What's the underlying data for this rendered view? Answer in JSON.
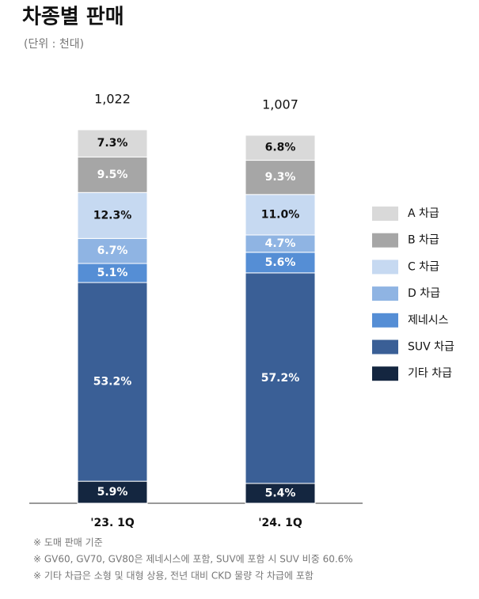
{
  "chart_data": {
    "type": "stacked-bar",
    "title": "차종별 판매",
    "subtitle": "(단위 : 천대)",
    "categories": [
      "'23. 1Q",
      "'24. 1Q"
    ],
    "totals": [
      {
        "value": 1022,
        "label": "1,022"
      },
      {
        "value": 1007,
        "label": "1,007"
      }
    ],
    "series": [
      {
        "name": "기타 차급",
        "color": "#142640",
        "values": [
          5.9,
          5.4
        ],
        "value_labels": [
          "5.9%",
          "5.4%"
        ]
      },
      {
        "name": "SUV 차급",
        "color": "#3a5f96",
        "values": [
          53.2,
          57.2
        ],
        "value_labels": [
          "53.2%",
          "57.2%"
        ]
      },
      {
        "name": "제네시스",
        "color": "#558ed5",
        "values": [
          5.1,
          5.6
        ],
        "value_labels": [
          "5.1%",
          "5.6%"
        ]
      },
      {
        "name": "D 차급",
        "color": "#8fb4e3",
        "values": [
          6.7,
          4.7
        ],
        "value_labels": [
          "6.7%",
          "4.7%"
        ]
      },
      {
        "name": "C 차급",
        "color": "#c6d9f1",
        "values": [
          12.3,
          11
        ],
        "value_labels": [
          "12.3%",
          "11.0%"
        ]
      },
      {
        "name": "B 차급",
        "color": "#a6a6a6",
        "values": [
          9.5,
          9.3
        ],
        "value_labels": [
          "9.5%",
          "9.3%"
        ]
      },
      {
        "name": "A 차급",
        "color": "#d9d9d9",
        "values": [
          7.3,
          6.8
        ],
        "value_labels": [
          "7.3%",
          "6.8%"
        ]
      }
    ],
    "legend": "right",
    "notes": [
      "※ 도매 판매 기준",
      "※ GV60, GV70, GV80은 제네시스에 포함, SUV에 포함 시 SUV 비중 60.6%",
      "※ 기타 차급은 소형 및 대형 상용, 전년 대비 CKD 물량 각 차급에 포함"
    ]
  }
}
